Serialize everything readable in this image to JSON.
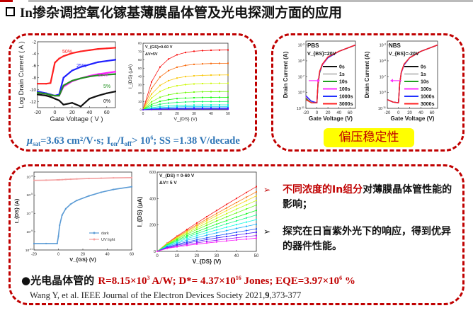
{
  "title": "In掺杂调控氧化镓基薄膜晶体管及光电探测方面的应用",
  "formula": {
    "mu": "μ",
    "mu_sub": "sat",
    "p1": "=3.63 cm²/V·s; I",
    "on": "on",
    "p2": "/I",
    "off": "off",
    "p3": "> 10",
    "exp": "6",
    "p4": "; SS =1.38 V/decade"
  },
  "stability_label": "偏压稳定性",
  "bullets": [
    {
      "arrow": "➢",
      "red": "不同浓度的In组分",
      "text": "对薄膜晶体管性能的影响；"
    },
    {
      "arrow": "➢",
      "text": "探究在日盲紫外光下的响应，得到优异的器件性能。"
    }
  ],
  "results": {
    "prefix": "●光电晶体管的 ",
    "r1": "R=8.15×10",
    "e1": "3",
    "r2": " A/W; D*= 4.37×10",
    "e2": "16",
    "r3": " Jones; EQE=3.97×10",
    "e3": "6",
    "r4": " %"
  },
  "citation": {
    "a": "Wang Y, et al. IEEE Journal of the Electron Devices Society 2021,",
    "vol": "9",
    "b": ",373-377"
  },
  "colors": {
    "accent": "#c00000",
    "formula": "#2e75b6",
    "highlight": "#ffff00"
  },
  "chart_data": [
    {
      "type": "line",
      "xlabel": "Gate Voltage ( V )",
      "ylabel": "Log Drain Current ( A )",
      "xlim": [
        -20,
        70
      ],
      "ylim": [
        -13,
        -2
      ],
      "xticks": [
        "-20",
        "0",
        "20",
        "40",
        "60"
      ],
      "xtickv": [
        -20,
        0,
        20,
        40,
        60
      ],
      "yticks": [
        "-12",
        "-10",
        "-8",
        "-6",
        "-4",
        "-2"
      ],
      "ytickv": [
        -12,
        -10,
        -8,
        -6,
        -4,
        -2
      ],
      "x": [
        -20,
        -10,
        -5,
        0,
        5,
        10,
        20,
        30,
        40,
        50,
        60,
        70
      ],
      "series": [
        {
          "name": "50%",
          "color": "#ff2020",
          "values": [
            -9,
            -9,
            -8.9,
            -5.5,
            -4.8,
            -4.4,
            -3.9,
            -3.6,
            -3.4,
            -3.2,
            -3.1,
            -3.0
          ]
        },
        {
          "name": "25%",
          "color": "#2020ff",
          "values": [
            -10.3,
            -10.6,
            -10.8,
            -11,
            -10.8,
            -8,
            -6.8,
            -6.2,
            -5.8,
            -5.4,
            -5.2,
            -5.0
          ]
        },
        {
          "name": "10%",
          "color": "#ff20ff",
          "values": [
            -10.5,
            -10.7,
            -10.9,
            -11,
            -11,
            -9.5,
            -8.6,
            -8.1,
            -7.7,
            -7.4,
            -7.2,
            -7.0
          ]
        },
        {
          "name": "5%",
          "color": "#209020",
          "values": [
            -10.5,
            -10.7,
            -10.9,
            -11,
            -11,
            -9.3,
            -8.5,
            -8.1,
            -7.8,
            -7.6,
            -7.5,
            -7.4
          ]
        },
        {
          "name": "0%",
          "color": "#111111",
          "values": [
            -10.8,
            -11,
            -11.2,
            -11.5,
            -11.8,
            -12.5,
            -12.2,
            -12.8,
            -11.5,
            -11,
            -10.6,
            -10.3
          ]
        }
      ]
    },
    {
      "type": "line",
      "xlabel": "V_{DS} (V)",
      "ylabel": "I_{DS} (μA)",
      "xlim": [
        0,
        50
      ],
      "ylim": [
        0,
        80
      ],
      "xticks": [
        "0",
        "10",
        "20",
        "30",
        "40",
        "50"
      ],
      "xtickv": [
        0,
        10,
        20,
        30,
        40,
        50
      ],
      "yticks": [
        "0",
        "10",
        "20",
        "30",
        "40",
        "50",
        "60",
        "70",
        "80"
      ],
      "ytickv": [
        0,
        10,
        20,
        30,
        40,
        50,
        60,
        70,
        80
      ],
      "annotations": [
        "V_{GS}=0-60 V",
        "ΔV=5V"
      ],
      "x": [
        0,
        5,
        10,
        15,
        20,
        25,
        30,
        35,
        40,
        45,
        50
      ],
      "saturation_values": [
        72,
        56,
        42,
        32,
        22,
        15,
        10,
        6,
        4,
        2.5,
        1.5,
        0.8
      ]
    },
    {
      "type": "line",
      "xlabel": "Gate Voltage (V)",
      "ylabel": "Drain Current (A)",
      "xlim": [
        -20,
        70
      ],
      "ylim": [
        -11,
        -2.5
      ],
      "log": true,
      "xticks": [
        "-20",
        "0",
        "20",
        "40",
        "60"
      ],
      "xtickv": [
        -20,
        0,
        20,
        40,
        60
      ],
      "yticks": [
        "10^{-11}",
        "10^{-9}",
        "10^{-7}",
        "10^{-5}",
        "10^{-3}"
      ],
      "ytickv": [
        -11,
        -9,
        -7,
        -5,
        -3
      ],
      "annotations": [
        "PBS",
        "V_{BS}=20V"
      ],
      "x": [
        -20,
        -10,
        0,
        2,
        5,
        10,
        20,
        40,
        70
      ],
      "series": [
        {
          "name": "0s",
          "color": "#111111",
          "values": [
            -9.7,
            -10.2,
            -10.3,
            -8,
            -6.5,
            -5.5,
            -4.6,
            -3.8,
            -3
          ]
        },
        {
          "name": "1s",
          "color": "#c0c0c0",
          "values": [
            -9.6,
            -10.2,
            -10.3,
            -8,
            -6.5,
            -5.5,
            -4.6,
            -3.8,
            -3
          ]
        },
        {
          "name": "10s",
          "color": "#20a020",
          "values": [
            -9.8,
            -10.3,
            -10.3,
            -8,
            -6.5,
            -5.5,
            -4.6,
            -3.8,
            -3
          ]
        },
        {
          "name": "100s",
          "color": "#ff30ff",
          "values": [
            -9.5,
            -10.1,
            -10.3,
            -7.9,
            -6.4,
            -5.5,
            -4.6,
            -3.8,
            -3
          ]
        },
        {
          "name": "1000s",
          "color": "#2030ff",
          "values": [
            -9.4,
            -10.1,
            -10.3,
            -7.8,
            -6.4,
            -5.4,
            -4.6,
            -3.8,
            -3
          ]
        },
        {
          "name": "3000s",
          "color": "#ff2020",
          "values": [
            -9.9,
            -10.3,
            -10.3,
            -7.8,
            -6.3,
            -5.4,
            -4.5,
            -3.8,
            -3
          ]
        }
      ]
    },
    {
      "type": "line",
      "xlabel": "Gate Voltage (V)",
      "ylabel": "Drain Current (A)",
      "xlim": [
        -20,
        70
      ],
      "ylim": [
        -11,
        -2.5
      ],
      "log": true,
      "xticks": [
        "-20",
        "0",
        "20",
        "40",
        "60"
      ],
      "xtickv": [
        -20,
        0,
        20,
        40,
        60
      ],
      "yticks": [
        "10^{-11}",
        "10^{-9}",
        "10^{-7}",
        "10^{-5}",
        "10^{-3}"
      ],
      "ytickv": [
        -11,
        -9,
        -7,
        -5,
        -3
      ],
      "annotations": [
        "NBS",
        "V_{BS}=-20V"
      ],
      "x": [
        -20,
        -10,
        0,
        2,
        5,
        10,
        20,
        40,
        70
      ],
      "series": [
        {
          "name": "0s",
          "color": "#111111",
          "values": [
            -9.9,
            -10.2,
            -10.3,
            -8,
            -6.5,
            -5.5,
            -4.6,
            -3.8,
            -3
          ]
        },
        {
          "name": "1s",
          "color": "#c0c0c0",
          "values": [
            -9.9,
            -10.2,
            -10.3,
            -8,
            -6.5,
            -5.5,
            -4.6,
            -3.8,
            -3
          ]
        },
        {
          "name": "10s",
          "color": "#20a020",
          "values": [
            -9.9,
            -10.2,
            -10.3,
            -8,
            -6.5,
            -5.5,
            -4.6,
            -3.8,
            -3
          ]
        },
        {
          "name": "100s",
          "color": "#ff30ff",
          "values": [
            -9.9,
            -10.2,
            -10.3,
            -8,
            -6.5,
            -5.5,
            -4.6,
            -3.8,
            -3
          ]
        },
        {
          "name": "1000s",
          "color": "#2030ff",
          "values": [
            -9.9,
            -10.2,
            -10.3,
            -8,
            -6.4,
            -5.5,
            -4.6,
            -3.8,
            -3
          ]
        },
        {
          "name": "3000s",
          "color": "#ff2020",
          "values": [
            -9.9,
            -10.2,
            -10.3,
            -7.9,
            -6.4,
            -5.4,
            -4.6,
            -3.8,
            -3
          ]
        }
      ]
    },
    {
      "type": "line",
      "xlabel": "V_{GS} (V)",
      "ylabel": "I_{DS} (A)",
      "xlim": [
        -20,
        60
      ],
      "ylim": [
        -11,
        -2.5
      ],
      "log": true,
      "xticks": [
        "-20",
        "0",
        "20",
        "40",
        "60"
      ],
      "xtickv": [
        -20,
        0,
        20,
        40,
        60
      ],
      "yticks": [
        "10^{-11}",
        "10^{-9}",
        "10^{-7}",
        "10^{-5}",
        "10^{-3}"
      ],
      "ytickv": [
        -11,
        -9,
        -7,
        -5,
        -3
      ],
      "x": [
        -20,
        -10,
        -1,
        0,
        1,
        3,
        6,
        10,
        15,
        25,
        35,
        45,
        60
      ],
      "series": [
        {
          "name": "dark",
          "color": "#5b9bd5",
          "values": [
            -10.3,
            -10.3,
            -10.3,
            -9.5,
            -8.3,
            -7.2,
            -6.5,
            -6.0,
            -5.6,
            -5.1,
            -4.7,
            -4.4,
            -4.1
          ]
        },
        {
          "name": "UV light",
          "color": "#f4a0a0",
          "values": [
            -3.4,
            -3.38,
            -3.35,
            -3.35,
            -3.34,
            -3.33,
            -3.3,
            -3.28,
            -3.25,
            -3.2,
            -3.17,
            -3.13,
            -3.1
          ]
        }
      ]
    },
    {
      "type": "line",
      "xlabel": "V_{DS} (V)",
      "ylabel": "I_{DS} (μA)",
      "xlim": [
        0,
        50
      ],
      "ylim": [
        0,
        600
      ],
      "xticks": [
        "0",
        "10",
        "20",
        "30",
        "40",
        "50"
      ],
      "xtickv": [
        0,
        10,
        20,
        30,
        40,
        50
      ],
      "yticks": [
        "0",
        "200",
        "400",
        "600"
      ],
      "ytickv": [
        0,
        200,
        400,
        600
      ],
      "annotations": [
        "V_{DS} = 0-60 V",
        "ΔV= 5 V"
      ],
      "x": [
        0,
        5,
        10,
        15,
        20,
        25,
        30,
        35,
        40,
        45,
        50
      ],
      "end_values": [
        490,
        450,
        420,
        385,
        350,
        310,
        275,
        240,
        205,
        170,
        145,
        120,
        100
      ]
    }
  ]
}
